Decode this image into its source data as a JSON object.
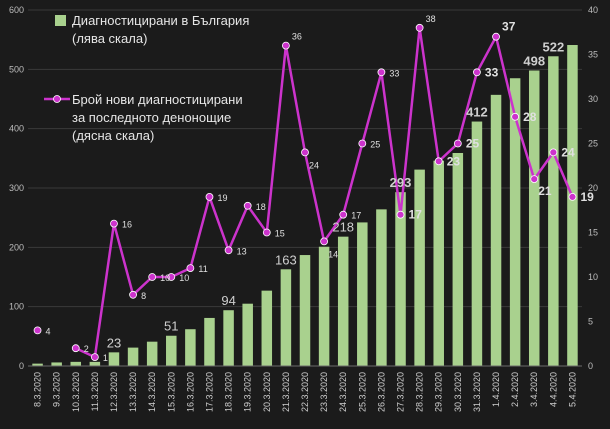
{
  "chart_data": {
    "type": "bar",
    "categories": [
      "8.3.2020",
      "9.3.2020",
      "10.3.2020",
      "11.3.2020",
      "12.3.2020",
      "13.3.2020",
      "14.3.2020",
      "15.3.2020",
      "16.3.2020",
      "17.3.2020",
      "18.3.2020",
      "19.3.2020",
      "20.3.2020",
      "21.3.2020",
      "22.3.2020",
      "23.3.2020",
      "24.3.2020",
      "25.3.2020",
      "26.3.2020",
      "27.3.2020",
      "28.3.2020",
      "29.3.2020",
      "30.3.2020",
      "31.3.2020",
      "1.4.2020",
      "2.4.2020",
      "3.4.2020",
      "4.4.2020",
      "5.4.2020"
    ],
    "series": [
      {
        "name": "Диагностицирани в България\n(лява скала)",
        "type": "bar",
        "axis": "left",
        "color": "#a9d18e",
        "values": [
          4,
          6,
          7,
          7,
          23,
          31,
          41,
          51,
          62,
          81,
          94,
          105,
          127,
          163,
          187,
          201,
          218,
          242,
          264,
          293,
          331,
          346,
          359,
          412,
          457,
          485,
          498,
          522,
          541
        ],
        "labeled_values": [
          23,
          51,
          94,
          163,
          218,
          293,
          412,
          498,
          522
        ]
      },
      {
        "name": "Брой нови диагностицирани\nза последното денонощие\n(дясна скала)",
        "type": "line",
        "axis": "right",
        "color": "#cc33cc",
        "values": [
          4,
          null,
          2,
          1,
          16,
          8,
          10,
          10,
          11,
          19,
          13,
          18,
          15,
          36,
          24,
          14,
          17,
          25,
          33,
          17,
          38,
          23,
          25,
          33,
          37,
          28,
          21,
          24,
          19
        ],
        "labeled_values": [
          4,
          2,
          1,
          16,
          10,
          11,
          19,
          13,
          36,
          24,
          14,
          17,
          25,
          33,
          17,
          38,
          23,
          25,
          33,
          37,
          28,
          21,
          24,
          19
        ]
      }
    ],
    "y_left": {
      "min": 0,
      "max": 600,
      "ticks": [
        0,
        100,
        200,
        300,
        400,
        500,
        600
      ]
    },
    "y_right": {
      "min": 0,
      "max": 40,
      "ticks": [
        0,
        5,
        10,
        15,
        20,
        25,
        30,
        35,
        40
      ]
    },
    "legend": {
      "placement": "top-left"
    },
    "grid": true,
    "title": "",
    "xlabel": "",
    "ylabel": ""
  }
}
